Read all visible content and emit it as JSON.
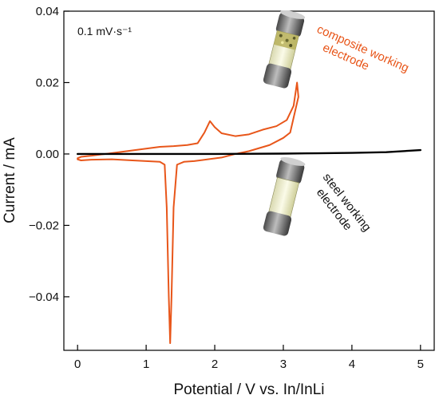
{
  "chart_data": {
    "type": "line",
    "title": "",
    "xlabel": "Potential / V vs. In/InLi",
    "ylabel": "Current / mA",
    "xlim": [
      -0.2,
      5.2
    ],
    "ylim": [
      -0.055,
      0.04
    ],
    "x_ticks": [
      0,
      1,
      2,
      3,
      4,
      5
    ],
    "x_tick_labels": [
      "0",
      "1",
      "2",
      "3",
      "4",
      "5"
    ],
    "y_ticks": [
      -0.04,
      -0.02,
      0.0,
      0.02,
      0.04
    ],
    "y_tick_labels": [
      "−0.04",
      "−0.02",
      "0.00",
      "0.02",
      "0.04"
    ],
    "grid": false,
    "legend": "none",
    "annotations": {
      "scan_rate": "0.1 mV·s⁻¹",
      "composite_label_lines": [
        "composite working",
        "electrode"
      ],
      "steel_label_lines": [
        "steel working",
        "electrode"
      ]
    },
    "series": [
      {
        "color": "#e8561a",
        "points": [
          [
            0.0,
            -0.0012
          ],
          [
            0.05,
            -0.0008
          ],
          [
            0.2,
            -0.0005
          ],
          [
            0.4,
            0.0
          ],
          [
            0.6,
            0.0005
          ],
          [
            0.8,
            0.001
          ],
          [
            1.0,
            0.0015
          ],
          [
            1.2,
            0.002
          ],
          [
            1.4,
            0.0022
          ],
          [
            1.6,
            0.0025
          ],
          [
            1.75,
            0.003
          ],
          [
            1.85,
            0.006
          ],
          [
            1.93,
            0.0092
          ],
          [
            2.0,
            0.0075
          ],
          [
            2.1,
            0.0058
          ],
          [
            2.3,
            0.005
          ],
          [
            2.5,
            0.0055
          ],
          [
            2.7,
            0.0068
          ],
          [
            2.9,
            0.0078
          ],
          [
            3.05,
            0.0095
          ],
          [
            3.15,
            0.0135
          ],
          [
            3.2,
            0.02
          ],
          [
            3.22,
            0.016
          ],
          [
            3.1,
            0.006
          ],
          [
            3.0,
            0.0045
          ],
          [
            2.8,
            0.0025
          ],
          [
            2.5,
            0.0008
          ],
          [
            2.3,
            0.0
          ],
          [
            2.1,
            -0.001
          ],
          [
            1.9,
            -0.0015
          ],
          [
            1.7,
            -0.002
          ],
          [
            1.55,
            -0.0022
          ],
          [
            1.45,
            -0.003
          ],
          [
            1.4,
            -0.015
          ],
          [
            1.37,
            -0.04
          ],
          [
            1.35,
            -0.053
          ],
          [
            1.33,
            -0.04
          ],
          [
            1.3,
            -0.015
          ],
          [
            1.27,
            -0.003
          ],
          [
            1.2,
            -0.0022
          ],
          [
            1.0,
            -0.002
          ],
          [
            0.8,
            -0.0018
          ],
          [
            0.5,
            -0.0015
          ],
          [
            0.2,
            -0.0016
          ],
          [
            0.05,
            -0.0018
          ],
          [
            0.0,
            -0.0015
          ]
        ]
      },
      {
        "color": "#000000",
        "points": [
          [
            0.0,
            0.0
          ],
          [
            1.0,
            0.0
          ],
          [
            2.0,
            0.0
          ],
          [
            3.0,
            0.0001
          ],
          [
            3.5,
            0.0002
          ],
          [
            4.0,
            0.0003
          ],
          [
            4.5,
            0.0005
          ],
          [
            5.0,
            0.0011
          ]
        ]
      }
    ]
  }
}
